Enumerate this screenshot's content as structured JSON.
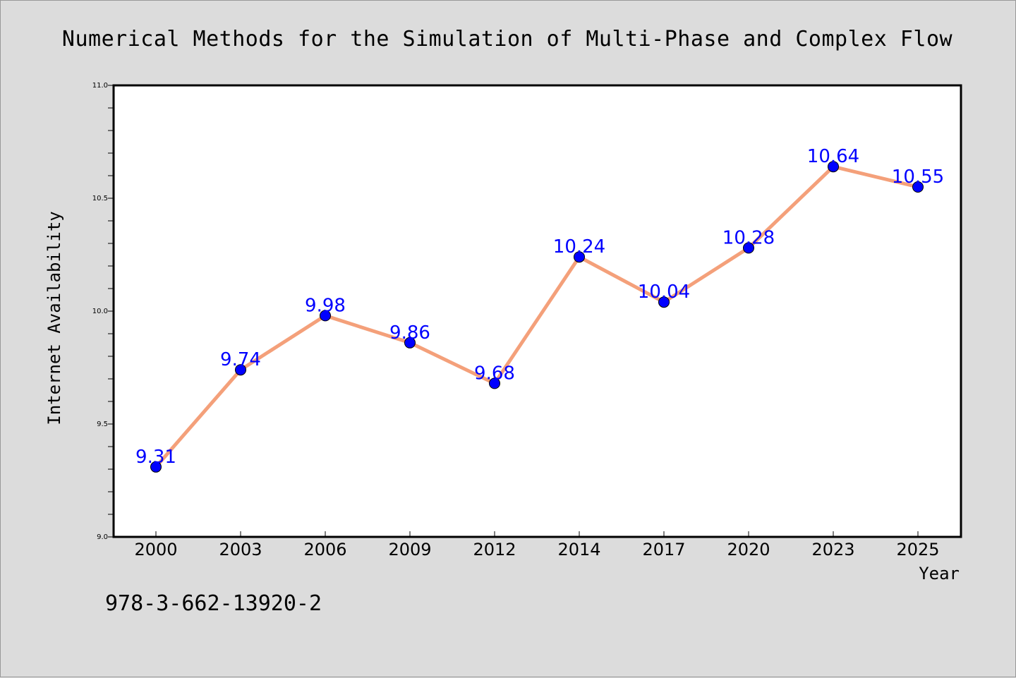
{
  "page": {
    "title": "Numerical Methods for the Simulation of Multi-Phase and Complex Flow",
    "footnote": "978-3-662-13920-2"
  },
  "colors": {
    "background": "#dcdcdc",
    "plot_background": "#ffffff",
    "line": "#f4a07a",
    "marker_fill": "#0000ff",
    "data_label": "#0000ff"
  },
  "chart_data": {
    "type": "line",
    "title": "Numerical Methods for the Simulation of Multi-Phase and Complex Flow",
    "xlabel": "Year",
    "ylabel": "Internet Availability",
    "categories": [
      "2000",
      "2003",
      "2006",
      "2009",
      "2012",
      "2014",
      "2017",
      "2020",
      "2023",
      "2025"
    ],
    "values": [
      9.31,
      9.74,
      9.98,
      9.86,
      9.68,
      10.24,
      10.04,
      10.28,
      10.64,
      10.55
    ],
    "data_labels": [
      "9.31",
      "9.74",
      "9.98",
      "9.86",
      "9.68",
      "10.24",
      "10.04",
      "10.28",
      "10.64",
      "10.55"
    ],
    "ylim": [
      9.0,
      11.0
    ],
    "yticks": [
      9.0,
      9.5,
      10.0,
      10.5,
      11.0
    ],
    "ytick_labels": [
      "9.0",
      "9.5",
      "10.0",
      "10.5",
      "11.0"
    ],
    "yminor_step": 0.1,
    "grid": false,
    "legend": "none",
    "marker": "circle"
  }
}
